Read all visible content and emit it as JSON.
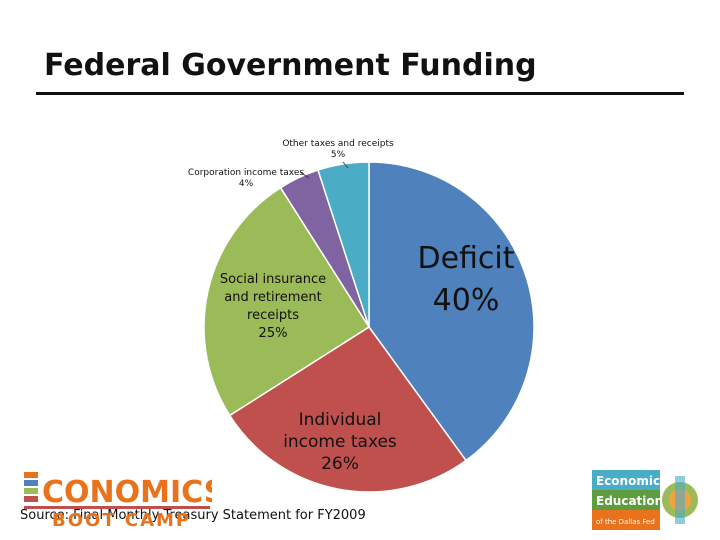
{
  "title": "Federal Government Funding",
  "source": "Source: Final Monthly Treasury Statement for FY2009",
  "logos": {
    "left": {
      "word": "CONOMICS",
      "sub": "BOOT CAMP"
    },
    "right": {
      "line1": "Economic",
      "line2": "Education",
      "line3": "of the Dallas Fed"
    }
  },
  "chart_data": {
    "type": "pie",
    "title": "Federal Government Funding",
    "slices": [
      {
        "name": "Deficit",
        "label": "Deficit",
        "pct_label": "40%",
        "value": 40,
        "color": "#4f81bd"
      },
      {
        "name": "Individual income taxes",
        "label": "Individual income taxes",
        "pct_label": "26%",
        "value": 26,
        "color": "#c0504d"
      },
      {
        "name": "Social insurance and retirement receipts",
        "label": "Social insurance and retirement receipts",
        "pct_label": "25%",
        "value": 25,
        "color": "#9bbb59"
      },
      {
        "name": "Corporation income taxes",
        "label": "Corporation income taxes",
        "pct_label": "4%",
        "value": 4,
        "color": "#8064a2"
      },
      {
        "name": "Other taxes and receipts",
        "label": "Other taxes and receipts",
        "pct_label": "5%",
        "value": 5,
        "color": "#4bacc6"
      }
    ]
  }
}
